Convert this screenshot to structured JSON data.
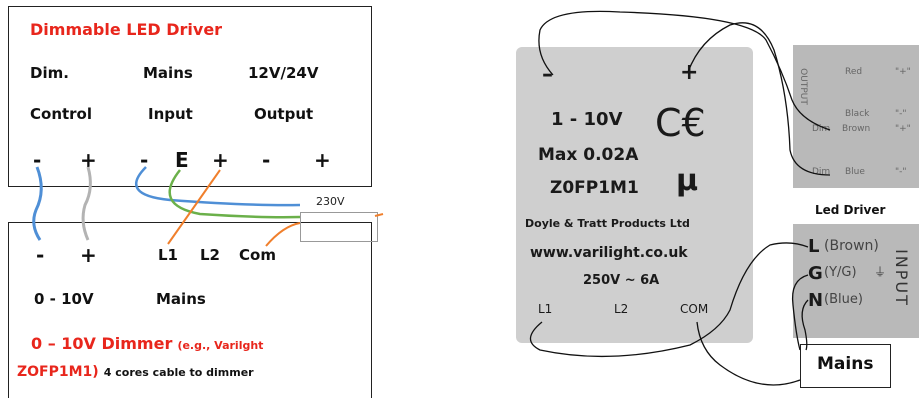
{
  "driver_box": {
    "title": "Dimmable LED Driver",
    "col1_top": "Dim.",
    "col1_bottom": "Control",
    "col2_top": "Mains",
    "col2_bottom": "Input",
    "col3_top": "12V/24V",
    "col3_bottom": "Output",
    "terminals": [
      "-",
      "+",
      "-",
      "E",
      "+",
      "-",
      "+"
    ]
  },
  "supply_label": "230V",
  "dimmer_box": {
    "terminals": [
      "-",
      "+",
      "L1",
      "L2",
      "Com"
    ],
    "label_left": "0 - 10V",
    "label_right": "Mains",
    "title_main": "0 – 10V Dimmer",
    "title_example": "(e.g., Varilght",
    "line2_red": "ZOFP1M1)",
    "line2_black": "4 cores cable to dimmer"
  },
  "dimmer_module": {
    "minus": "–",
    "plus": "+",
    "voltage": "1 - 10V",
    "current": "Max 0.02A",
    "ce": "C€",
    "model": "Z0FP1M1",
    "micro": "μ",
    "maker": "Doyle & Tratt Products Ltd",
    "website": "www.varilight.co.uk",
    "rating": "250V ~ 6A",
    "terms": [
      "L1",
      "L2",
      "COM"
    ]
  },
  "output_panel": {
    "side_label": "OUTPUT",
    "rows": [
      {
        "left": "",
        "name": "Red",
        "sign": "\"+\""
      },
      {
        "left": "",
        "name": "Black",
        "sign": "\"-\""
      },
      {
        "left": "Dim",
        "name": "Brown",
        "sign": "\"+\""
      },
      {
        "left": "Dim",
        "name": "Blue",
        "sign": "\"-\""
      }
    ]
  },
  "led_driver_label": "Led Driver",
  "input_panel": {
    "side_label": "INPUT",
    "rows": [
      {
        "letter": "L",
        "desc": "(Brown)"
      },
      {
        "letter": "G",
        "desc": "(Y/G)"
      },
      {
        "letter": "N",
        "desc": "(Blue)"
      }
    ]
  },
  "mains_box_label": "Mains",
  "colors": {
    "red_text": "#e8261c",
    "wire_blue": "#4f8fd6",
    "wire_grey": "#b3b3b3",
    "wire_green": "#6bb04a",
    "wire_orange": "#f07f2c",
    "module_grey": "#cfcfcf"
  }
}
